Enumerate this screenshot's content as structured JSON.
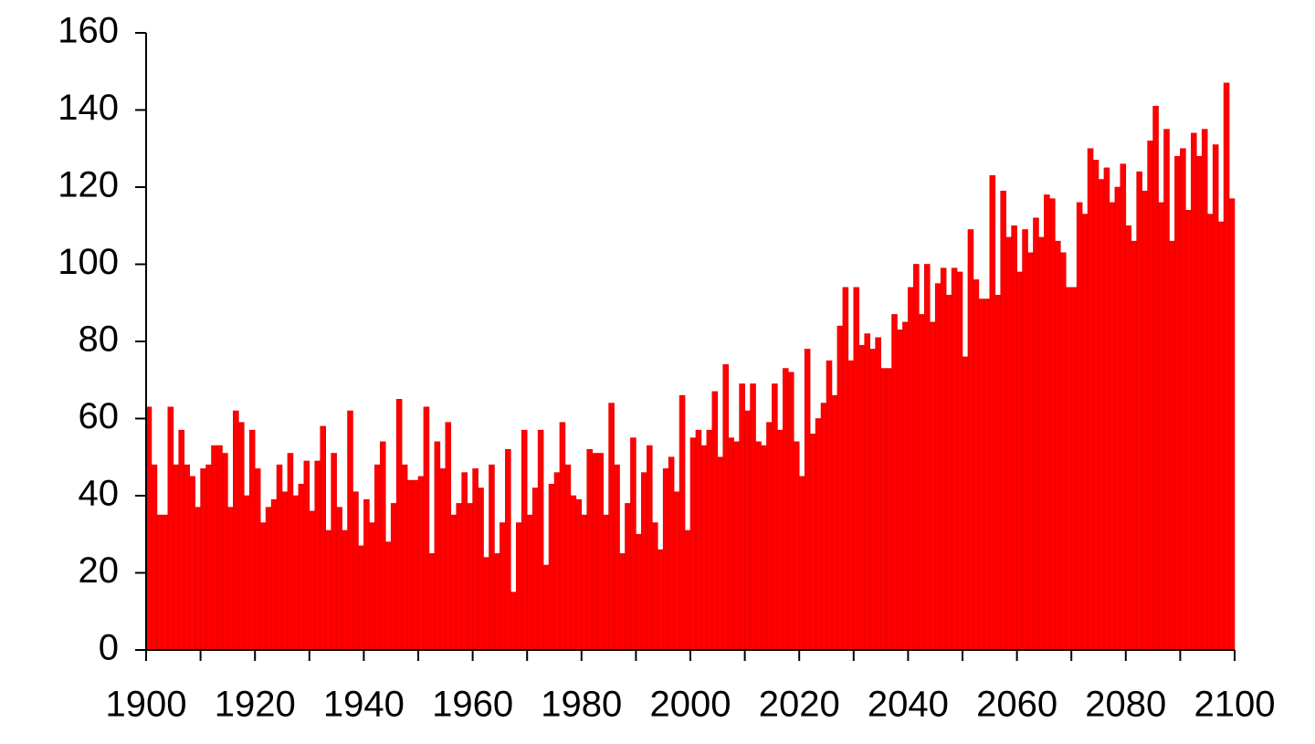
{
  "chart_data": {
    "type": "bar",
    "color": "#ff0000",
    "x": [
      1900,
      1901,
      1902,
      1903,
      1904,
      1905,
      1906,
      1907,
      1908,
      1909,
      1910,
      1911,
      1912,
      1913,
      1914,
      1915,
      1916,
      1917,
      1918,
      1919,
      1920,
      1921,
      1922,
      1923,
      1924,
      1925,
      1926,
      1927,
      1928,
      1929,
      1930,
      1931,
      1932,
      1933,
      1934,
      1935,
      1936,
      1937,
      1938,
      1939,
      1940,
      1941,
      1942,
      1943,
      1944,
      1945,
      1946,
      1947,
      1948,
      1949,
      1950,
      1951,
      1952,
      1953,
      1954,
      1955,
      1956,
      1957,
      1958,
      1959,
      1960,
      1961,
      1962,
      1963,
      1964,
      1965,
      1966,
      1967,
      1968,
      1969,
      1970,
      1971,
      1972,
      1973,
      1974,
      1975,
      1976,
      1977,
      1978,
      1979,
      1980,
      1981,
      1982,
      1983,
      1984,
      1985,
      1986,
      1987,
      1988,
      1989,
      1990,
      1991,
      1992,
      1993,
      1994,
      1995,
      1996,
      1997,
      1998,
      1999,
      2000,
      2001,
      2002,
      2003,
      2004,
      2005,
      2006,
      2007,
      2008,
      2009,
      2010,
      2011,
      2012,
      2013,
      2014,
      2015,
      2016,
      2017,
      2018,
      2019,
      2020,
      2021,
      2022,
      2023,
      2024,
      2025,
      2026,
      2027,
      2028,
      2029,
      2030,
      2031,
      2032,
      2033,
      2034,
      2035,
      2036,
      2037,
      2038,
      2039,
      2040,
      2041,
      2042,
      2043,
      2044,
      2045,
      2046,
      2047,
      2048,
      2049,
      2050,
      2051,
      2052,
      2053,
      2054,
      2055,
      2056,
      2057,
      2058,
      2059,
      2060,
      2061,
      2062,
      2063,
      2064,
      2065,
      2066,
      2067,
      2068,
      2069,
      2070,
      2071,
      2072,
      2073,
      2074,
      2075,
      2076,
      2077,
      2078,
      2079,
      2080,
      2081,
      2082,
      2083,
      2084,
      2085,
      2086,
      2087,
      2088,
      2089,
      2090,
      2091,
      2092,
      2093,
      2094,
      2095,
      2096,
      2097,
      2098,
      2099
    ],
    "values": [
      63,
      48,
      35,
      35,
      63,
      48,
      57,
      48,
      45,
      37,
      47,
      48,
      53,
      53,
      51,
      37,
      62,
      59,
      40,
      57,
      47,
      33,
      37,
      39,
      48,
      41,
      51,
      40,
      43,
      49,
      36,
      49,
      58,
      31,
      51,
      37,
      31,
      62,
      41,
      27,
      39,
      33,
      48,
      54,
      28,
      38,
      65,
      48,
      44,
      44,
      45,
      63,
      25,
      54,
      47,
      59,
      35,
      38,
      46,
      38,
      47,
      42,
      24,
      48,
      25,
      33,
      52,
      15,
      33,
      57,
      35,
      42,
      57,
      22,
      43,
      46,
      59,
      48,
      40,
      39,
      35,
      52,
      51,
      51,
      35,
      64,
      48,
      25,
      38,
      55,
      30,
      46,
      53,
      33,
      26,
      47,
      50,
      41,
      66,
      31,
      55,
      57,
      53,
      57,
      67,
      50,
      74,
      55,
      54,
      69,
      62,
      69,
      54,
      53,
      59,
      69,
      57,
      73,
      72,
      54,
      45,
      78,
      56,
      60,
      64,
      75,
      66,
      84,
      94,
      75,
      94,
      79,
      82,
      78,
      81,
      73,
      73,
      87,
      83,
      85,
      94,
      100,
      87,
      100,
      85,
      95,
      99,
      92,
      99,
      98,
      76,
      109,
      96,
      91,
      91,
      123,
      92,
      119,
      107,
      110,
      98,
      109,
      103,
      112,
      107,
      118,
      117,
      106,
      103,
      94,
      94,
      116,
      113,
      130,
      127,
      122,
      125,
      116,
      120,
      126,
      110,
      106,
      124,
      119,
      132,
      141,
      116,
      135,
      106,
      128,
      130,
      114,
      134,
      128,
      135,
      113,
      131,
      111,
      147,
      117
    ],
    "xlim": [
      1900,
      2100
    ],
    "xticks": [
      1900,
      1920,
      1940,
      1960,
      1980,
      2000,
      2020,
      2040,
      2060,
      2080,
      2100
    ],
    "xminorticks": [
      1910,
      1930,
      1950,
      1970,
      1990,
      2010,
      2030,
      2050,
      2070,
      2090
    ],
    "ylim": [
      0,
      160
    ],
    "yticks": [
      0,
      20,
      40,
      60,
      80,
      100,
      120,
      140,
      160
    ]
  }
}
